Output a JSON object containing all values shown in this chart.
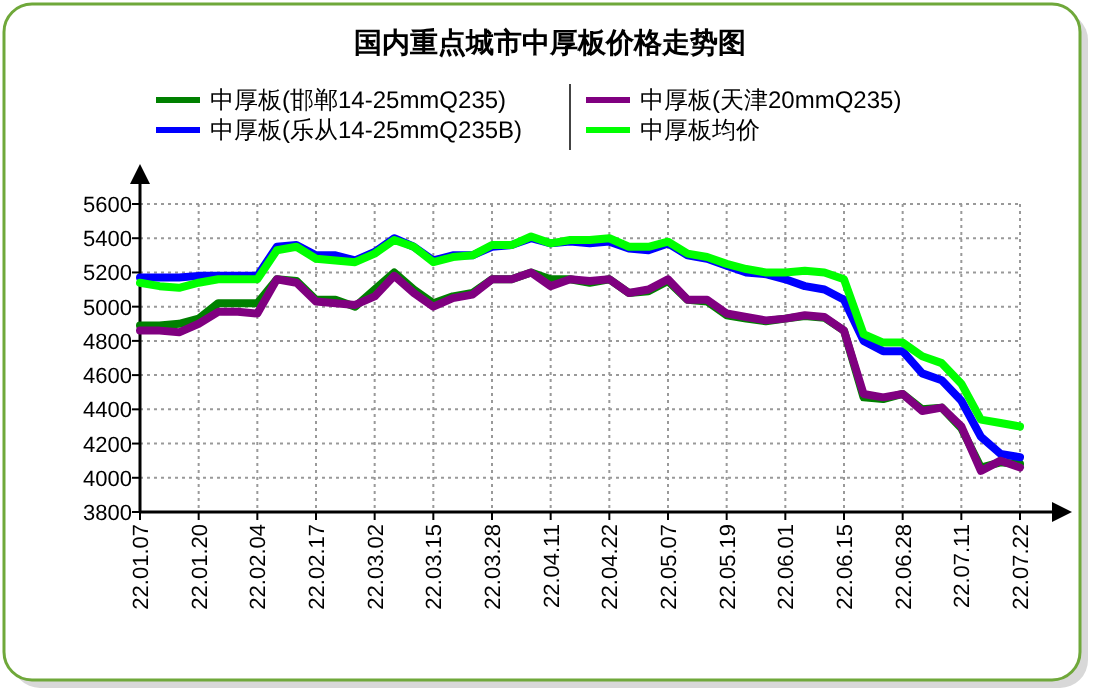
{
  "chart_data": {
    "type": "line",
    "title": "国内重点城市中厚板价格走势图",
    "categories": [
      "22.01.07",
      null,
      null,
      "22.01.20",
      null,
      null,
      "22.02.04",
      null,
      null,
      "22.02.17",
      null,
      null,
      "22.03.02",
      null,
      null,
      "22.03.15",
      null,
      null,
      "22.03.28",
      null,
      null,
      "22.04.11",
      null,
      null,
      "22.04.22",
      null,
      null,
      "22.05.07",
      null,
      null,
      "22.05.19",
      null,
      null,
      "22.06.01",
      null,
      null,
      "22.06.15",
      null,
      null,
      "22.06.28",
      null,
      null,
      "22.07.11",
      null,
      null,
      "22.07.22"
    ],
    "series": [
      {
        "name": "中厚板(邯郸14-25mmQ235)",
        "color": "#008000",
        "values": [
          4890,
          4890,
          4900,
          4930,
          5020,
          5020,
          5020,
          5160,
          5150,
          5040,
          5040,
          5000,
          5100,
          5200,
          5100,
          5020,
          5060,
          5080,
          5160,
          5160,
          5200,
          5160,
          5160,
          5140,
          5160,
          5080,
          5090,
          5150,
          5040,
          5030,
          4950,
          4930,
          4915,
          4930,
          4945,
          4935,
          4860,
          4470,
          4460,
          4490,
          4400,
          4410,
          4290,
          4060,
          4090,
          4080
        ]
      },
      {
        "name": "中厚板(乐从14-25mmQ235B)",
        "color": "#0000ff",
        "values": [
          5170,
          5170,
          5170,
          5180,
          5180,
          5180,
          5180,
          5350,
          5360,
          5300,
          5300,
          5270,
          5320,
          5400,
          5350,
          5270,
          5300,
          5300,
          5350,
          5360,
          5400,
          5370,
          5380,
          5370,
          5380,
          5340,
          5330,
          5370,
          5300,
          5280,
          5240,
          5200,
          5190,
          5160,
          5120,
          5100,
          5040,
          4800,
          4740,
          4740,
          4610,
          4570,
          4450,
          4240,
          4140,
          4120
        ]
      },
      {
        "name": "中厚板(天津20mmQ235)",
        "color": "#800080",
        "values": [
          4860,
          4860,
          4850,
          4900,
          4970,
          4970,
          4960,
          5160,
          5140,
          5030,
          5020,
          5010,
          5060,
          5180,
          5080,
          5000,
          5050,
          5070,
          5160,
          5160,
          5200,
          5120,
          5160,
          5150,
          5160,
          5080,
          5100,
          5160,
          5040,
          5040,
          4960,
          4940,
          4920,
          4930,
          4950,
          4940,
          4860,
          4490,
          4470,
          4490,
          4390,
          4410,
          4300,
          4040,
          4100,
          4060
        ]
      },
      {
        "name": "中厚板均价",
        "color": "#00ff00",
        "values": [
          5140,
          5120,
          5110,
          5140,
          5160,
          5160,
          5160,
          5330,
          5350,
          5280,
          5270,
          5260,
          5310,
          5390,
          5350,
          5260,
          5290,
          5300,
          5360,
          5360,
          5410,
          5370,
          5390,
          5390,
          5400,
          5350,
          5350,
          5380,
          5310,
          5290,
          5250,
          5220,
          5200,
          5200,
          5210,
          5200,
          5160,
          4840,
          4790,
          4790,
          4710,
          4670,
          4550,
          4340,
          4320,
          4300
        ]
      }
    ],
    "ylim": [
      3800,
      5600
    ],
    "yticks": [
      3800,
      4000,
      4200,
      4400,
      4600,
      4800,
      5000,
      5200,
      5400,
      5600
    ],
    "grid": true,
    "legend": "top",
    "marker": "none",
    "line_style": "solid"
  }
}
